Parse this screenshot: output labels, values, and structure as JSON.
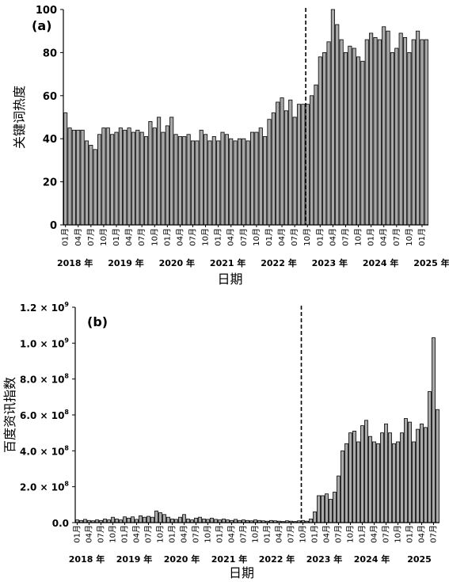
{
  "chart_data": [
    {
      "type": "bar",
      "panel_label": "(a)",
      "ylabel": "关键词热度",
      "xlabel": "日期",
      "ylim": [
        0,
        100
      ],
      "yticks": [
        "0",
        "20",
        "40",
        "60",
        "80",
        "100"
      ],
      "month_tick_labels": [
        "01月",
        "04月",
        "07月",
        "10月"
      ],
      "year_labels": [
        "2018 年",
        "2019 年",
        "2020 年",
        "2021 年",
        "2022 年",
        "2023 年",
        "2024 年",
        "2025 年"
      ],
      "start": "2018-01",
      "divider_at": "2022-10",
      "values": [
        52,
        45,
        44,
        44,
        44,
        39,
        37,
        35,
        42,
        45,
        45,
        42,
        43,
        45,
        44,
        45,
        43,
        44,
        43,
        41,
        48,
        45,
        50,
        43,
        46,
        50,
        42,
        41,
        41,
        42,
        39,
        39,
        44,
        42,
        39,
        41,
        39,
        43,
        42,
        40,
        39,
        40,
        40,
        39,
        43,
        43,
        45,
        41,
        49,
        52,
        57,
        59,
        53,
        58,
        50,
        56,
        56,
        56,
        60,
        65,
        78,
        80,
        85,
        100,
        93,
        86,
        80,
        83,
        82,
        78,
        76,
        86,
        89,
        87,
        86,
        92,
        90,
        80,
        82,
        89,
        87,
        80,
        86,
        90,
        86,
        86
      ]
    },
    {
      "type": "bar",
      "panel_label": "(b)",
      "ylabel": "百度资讯指数",
      "xlabel": "日期",
      "ylim": [
        0,
        1200000000.0
      ],
      "yticks": [
        {
          "mant": "1.2",
          "exp": "9"
        },
        {
          "mant": "1.0",
          "exp": "9"
        },
        {
          "mant": "8.0",
          "exp": "8"
        },
        {
          "mant": "6.0",
          "exp": "8"
        },
        {
          "mant": "4.0",
          "exp": "8"
        },
        {
          "mant": "2.0",
          "exp": "8"
        },
        {
          "mant": "0.0",
          "exp": ""
        }
      ],
      "times_sign": "×",
      "base": "10",
      "month_tick_labels": [
        "01月",
        "04月",
        "07月",
        "10月"
      ],
      "year_labels": [
        "2018 年",
        "2019 年",
        "2020 年",
        "2021 年",
        "2022 年",
        "2023 年",
        "2024 年",
        "2025"
      ],
      "start": "2018-01",
      "divider_at": "2022-10",
      "values": [
        15000000,
        12000000,
        18000000,
        12000000,
        10000000,
        15000000,
        12000000,
        20000000,
        15000000,
        30000000,
        20000000,
        15000000,
        32000000,
        25000000,
        32000000,
        18000000,
        38000000,
        30000000,
        35000000,
        30000000,
        65000000,
        55000000,
        45000000,
        30000000,
        20000000,
        18000000,
        30000000,
        45000000,
        20000000,
        15000000,
        25000000,
        30000000,
        20000000,
        18000000,
        25000000,
        18000000,
        15000000,
        20000000,
        15000000,
        12000000,
        18000000,
        12000000,
        15000000,
        12000000,
        10000000,
        15000000,
        12000000,
        10000000,
        8000000,
        12000000,
        10000000,
        8000000,
        6000000,
        10000000,
        8000000,
        6000000,
        10000000,
        12000000,
        8000000,
        20000000,
        60000000,
        150000000,
        150000000,
        160000000,
        130000000,
        170000000,
        260000000,
        400000000,
        440000000,
        500000000,
        510000000,
        450000000,
        540000000,
        570000000,
        480000000,
        450000000,
        440000000,
        500000000,
        550000000,
        500000000,
        440000000,
        450000000,
        500000000,
        580000000,
        560000000,
        450000000,
        520000000,
        550000000,
        530000000,
        730000000,
        1030000000,
        630000000
      ]
    }
  ]
}
